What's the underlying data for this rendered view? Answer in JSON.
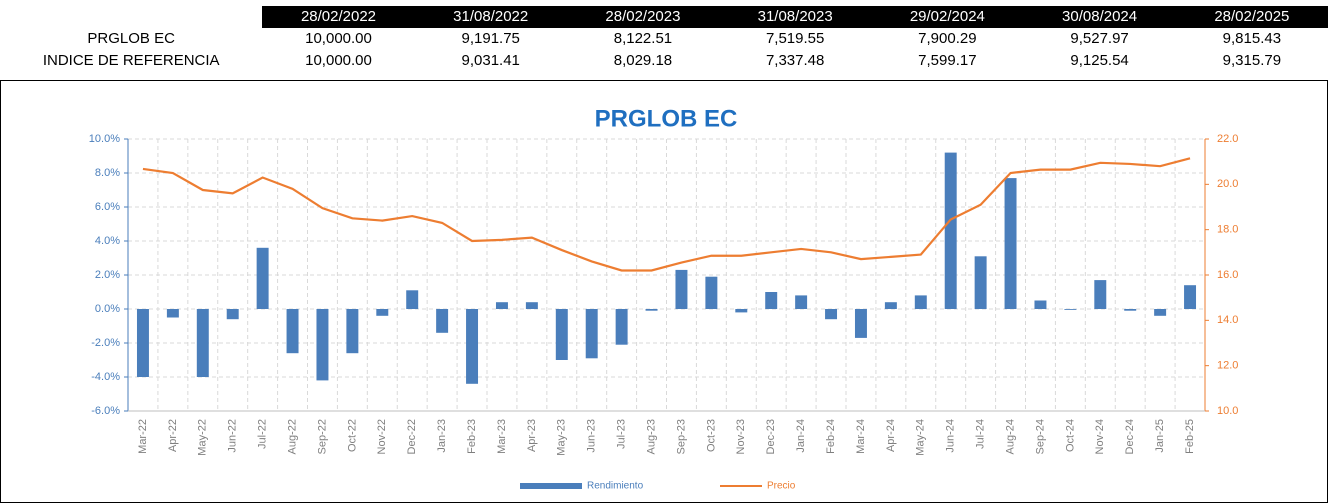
{
  "table": {
    "header": [
      "28/02/2022",
      "31/08/2022",
      "28/02/2023",
      "31/08/2023",
      "29/02/2024",
      "30/08/2024",
      "28/02/2025"
    ],
    "rows": [
      {
        "label": "PRGLOB EC",
        "values": [
          "10,000.00",
          "9,191.75",
          "8,122.51",
          "7,519.55",
          "7,900.29",
          "9,527.97",
          "9,815.43"
        ]
      },
      {
        "label": "INDICE DE REFERENCIA",
        "values": [
          "10,000.00",
          "9,031.41",
          "8,029.18",
          "7,337.48",
          "7,599.17",
          "9,125.54",
          "9,315.79"
        ]
      }
    ]
  },
  "chart_data": {
    "type": "combo",
    "title": "PRGLOB EC",
    "categories": [
      "Mar-22",
      "Apr-22",
      "May-22",
      "Jun-22",
      "Jul-22",
      "Aug-22",
      "Sep-22",
      "Oct-22",
      "Nov-22",
      "Dec-22",
      "Jan-23",
      "Feb-23",
      "Mar-23",
      "Apr-23",
      "May-23",
      "Jun-23",
      "Jul-23",
      "Aug-23",
      "Sep-23",
      "Oct-23",
      "Nov-23",
      "Dec-23",
      "Jan-24",
      "Feb-24",
      "Mar-24",
      "Apr-24",
      "May-24",
      "Jun-24",
      "Jul-24",
      "Aug-24",
      "Sep-24",
      "Oct-24",
      "Nov-24",
      "Dec-24",
      "Jan-25",
      "Feb-25"
    ],
    "series": [
      {
        "name": "Rendimiento",
        "type": "bar",
        "color": "#4a7ebb",
        "values": [
          -4.0,
          -0.5,
          -4.0,
          -0.6,
          3.6,
          -2.6,
          -4.2,
          -2.6,
          -0.4,
          1.1,
          -1.4,
          -4.4,
          0.4,
          0.4,
          -3.0,
          -2.9,
          -2.1,
          -0.1,
          2.3,
          1.9,
          -0.2,
          1.0,
          0.8,
          -0.6,
          -1.7,
          0.4,
          0.8,
          9.2,
          3.1,
          7.7,
          0.5,
          -0.05,
          1.7,
          -0.1,
          -0.4,
          1.4
        ]
      },
      {
        "name": "Precio",
        "type": "line",
        "color": "#ed7d31",
        "axis": "y2",
        "values": [
          20.68,
          20.5,
          19.75,
          19.6,
          20.3,
          19.8,
          18.95,
          18.5,
          18.4,
          18.6,
          18.3,
          17.5,
          17.55,
          17.65,
          17.1,
          16.6,
          16.2,
          16.2,
          16.55,
          16.85,
          16.85,
          17.0,
          17.15,
          17.0,
          16.7,
          16.8,
          16.9,
          18.45,
          19.1,
          20.5,
          20.65,
          20.65,
          20.95,
          20.9,
          20.8,
          21.15
        ]
      }
    ],
    "ylim": [
      -6,
      10
    ],
    "yticks": [
      {
        "value": -6,
        "label": "-6.0%"
      },
      {
        "value": -4,
        "label": "-4.0%"
      },
      {
        "value": -2,
        "label": "-2.0%"
      },
      {
        "value": 0,
        "label": "0.0%"
      },
      {
        "value": 2,
        "label": "2.0%"
      },
      {
        "value": 4,
        "label": "4.0%"
      },
      {
        "value": 6,
        "label": "6.0%"
      },
      {
        "value": 8,
        "label": "8.0%"
      },
      {
        "value": 10,
        "label": "10.0%"
      }
    ],
    "y2lim": [
      10,
      22
    ],
    "y2ticks": [
      {
        "value": 10,
        "label": "10.0"
      },
      {
        "value": 12,
        "label": "12.0"
      },
      {
        "value": 14,
        "label": "14.0"
      },
      {
        "value": 16,
        "label": "16.0"
      },
      {
        "value": 18,
        "label": "18.0"
      },
      {
        "value": 20,
        "label": "20.0"
      },
      {
        "value": 22,
        "label": "22.0"
      }
    ],
    "grid": true,
    "legend": "bottom"
  }
}
